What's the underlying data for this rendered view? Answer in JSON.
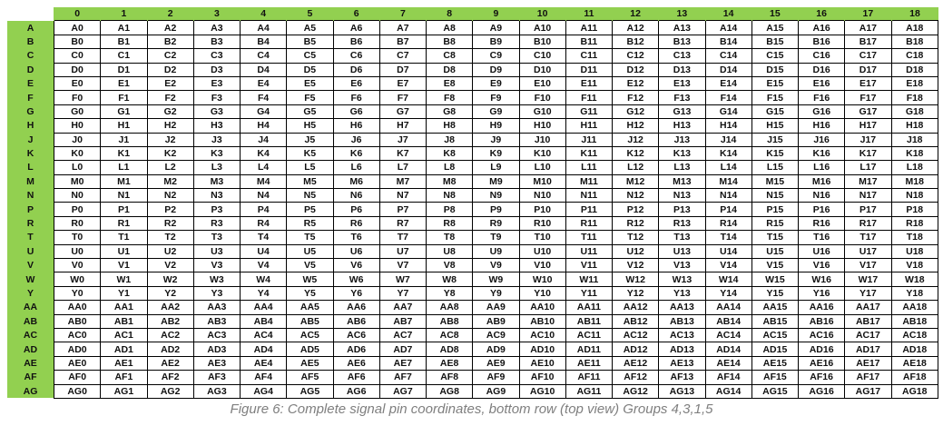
{
  "header_color": "#92d050",
  "columns": [
    "0",
    "1",
    "2",
    "3",
    "4",
    "5",
    "6",
    "7",
    "8",
    "9",
    "10",
    "11",
    "12",
    "13",
    "14",
    "15",
    "16",
    "17",
    "18"
  ],
  "rows": [
    {
      "label": "A",
      "cells": [
        "A0",
        "A1",
        "A2",
        "A3",
        "A4",
        "A5",
        "A6",
        "A7",
        "A8",
        "A9",
        "A10",
        "A11",
        "A12",
        "A13",
        "A14",
        "A15",
        "A16",
        "A17",
        "A18"
      ]
    },
    {
      "label": "B",
      "cells": [
        "B0",
        "B1",
        "B2",
        "B3",
        "B4",
        "B5",
        "B6",
        "B7",
        "B8",
        "B9",
        "B10",
        "B11",
        "B12",
        "B13",
        "B14",
        "B15",
        "B16",
        "B17",
        "B18"
      ]
    },
    {
      "label": "C",
      "cells": [
        "C0",
        "C1",
        "C2",
        "C3",
        "C4",
        "C5",
        "C6",
        "C7",
        "C8",
        "C9",
        "C10",
        "C11",
        "C12",
        "C13",
        "C14",
        "C15",
        "C16",
        "C17",
        "C18"
      ]
    },
    {
      "label": "D",
      "cells": [
        "D0",
        "D1",
        "D2",
        "D3",
        "D4",
        "D5",
        "D6",
        "D7",
        "D8",
        "D9",
        "D10",
        "D11",
        "D12",
        "D13",
        "D14",
        "D15",
        "D16",
        "D17",
        "D18"
      ]
    },
    {
      "label": "E",
      "cells": [
        "E0",
        "E1",
        "E2",
        "E3",
        "E4",
        "E5",
        "E6",
        "E7",
        "E8",
        "E9",
        "E10",
        "E11",
        "E12",
        "E13",
        "E14",
        "E15",
        "E16",
        "E17",
        "E18"
      ]
    },
    {
      "label": "F",
      "cells": [
        "F0",
        "F1",
        "F2",
        "F3",
        "F4",
        "F5",
        "F6",
        "F7",
        "F8",
        "F9",
        "F10",
        "F11",
        "F12",
        "F13",
        "F14",
        "F15",
        "F16",
        "F17",
        "F18"
      ]
    },
    {
      "label": "G",
      "cells": [
        "G0",
        "G1",
        "G2",
        "G3",
        "G4",
        "G5",
        "G6",
        "G7",
        "G8",
        "G9",
        "G10",
        "G11",
        "G12",
        "G13",
        "G14",
        "G15",
        "G16",
        "G17",
        "G18"
      ]
    },
    {
      "label": "H",
      "cells": [
        "H0",
        "H1",
        "H2",
        "H3",
        "H4",
        "H5",
        "H6",
        "H7",
        "H8",
        "H9",
        "H10",
        "H11",
        "H12",
        "H13",
        "H14",
        "H15",
        "H16",
        "H17",
        "H18"
      ]
    },
    {
      "label": "J",
      "cells": [
        "J0",
        "J1",
        "J2",
        "J3",
        "J4",
        "J5",
        "J6",
        "J7",
        "J8",
        "J9",
        "J10",
        "J11",
        "J12",
        "J13",
        "J14",
        "J15",
        "J16",
        "J17",
        "J18"
      ]
    },
    {
      "label": "K",
      "cells": [
        "K0",
        "K1",
        "K2",
        "K3",
        "K4",
        "K5",
        "K6",
        "K7",
        "K8",
        "K9",
        "K10",
        "K11",
        "K12",
        "K13",
        "K14",
        "K15",
        "K16",
        "K17",
        "K18"
      ]
    },
    {
      "label": "L",
      "cells": [
        "L0",
        "L1",
        "L2",
        "L3",
        "L4",
        "L5",
        "L6",
        "L7",
        "L8",
        "L9",
        "L10",
        "L11",
        "L12",
        "L13",
        "L14",
        "L15",
        "L16",
        "L17",
        "L18"
      ]
    },
    {
      "label": "M",
      "cells": [
        "M0",
        "M1",
        "M2",
        "M3",
        "M4",
        "M5",
        "M6",
        "M7",
        "M8",
        "M9",
        "M10",
        "M11",
        "M12",
        "M13",
        "M14",
        "M15",
        "M16",
        "M17",
        "M18"
      ]
    },
    {
      "label": "N",
      "cells": [
        "N0",
        "N1",
        "N2",
        "N3",
        "N4",
        "N5",
        "N6",
        "N7",
        "N8",
        "N9",
        "N10",
        "N11",
        "N12",
        "N13",
        "N14",
        "N15",
        "N16",
        "N17",
        "N18"
      ]
    },
    {
      "label": "P",
      "cells": [
        "P0",
        "P1",
        "P2",
        "P3",
        "P4",
        "P5",
        "P6",
        "P7",
        "P8",
        "P9",
        "P10",
        "P11",
        "P12",
        "P13",
        "P14",
        "P15",
        "P16",
        "P17",
        "P18"
      ]
    },
    {
      "label": "R",
      "cells": [
        "R0",
        "R1",
        "R2",
        "R3",
        "R4",
        "R5",
        "R6",
        "R7",
        "R8",
        "R9",
        "R10",
        "R11",
        "R12",
        "R13",
        "R14",
        "R15",
        "R16",
        "R17",
        "R18"
      ]
    },
    {
      "label": "T",
      "cells": [
        "T0",
        "T1",
        "T2",
        "T3",
        "T4",
        "T5",
        "T6",
        "T7",
        "T8",
        "T9",
        "T10",
        "T11",
        "T12",
        "T13",
        "T14",
        "T15",
        "T16",
        "T17",
        "T18"
      ]
    },
    {
      "label": "U",
      "cells": [
        "U0",
        "U1",
        "U2",
        "U3",
        "U4",
        "U5",
        "U6",
        "U7",
        "U8",
        "U9",
        "U10",
        "U11",
        "U12",
        "U13",
        "U14",
        "U15",
        "U16",
        "U17",
        "U18"
      ]
    },
    {
      "label": "V",
      "cells": [
        "V0",
        "V1",
        "V2",
        "V3",
        "V4",
        "V5",
        "V6",
        "V7",
        "V8",
        "V9",
        "V10",
        "V11",
        "V12",
        "V13",
        "V14",
        "V15",
        "V16",
        "V17",
        "V18"
      ]
    },
    {
      "label": "W",
      "cells": [
        "W0",
        "W1",
        "W2",
        "W3",
        "W4",
        "W5",
        "W6",
        "W7",
        "W8",
        "W9",
        "W10",
        "W11",
        "W12",
        "W13",
        "W14",
        "W15",
        "W16",
        "W17",
        "W18"
      ]
    },
    {
      "label": "Y",
      "cells": [
        "Y0",
        "Y1",
        "Y2",
        "Y3",
        "Y4",
        "Y5",
        "Y6",
        "Y7",
        "Y8",
        "Y9",
        "Y10",
        "Y11",
        "Y12",
        "Y13",
        "Y14",
        "Y15",
        "Y16",
        "Y17",
        "Y18"
      ]
    },
    {
      "label": "AA",
      "cells": [
        "AA0",
        "AA1",
        "AA2",
        "AA3",
        "AA4",
        "AA5",
        "AA6",
        "AA7",
        "AA8",
        "AA9",
        "AA10",
        "AA11",
        "AA12",
        "AA13",
        "AA14",
        "AA15",
        "AA16",
        "AA17",
        "AA18"
      ]
    },
    {
      "label": "AB",
      "cells": [
        "AB0",
        "AB1",
        "AB2",
        "AB3",
        "AB4",
        "AB5",
        "AB6",
        "AB7",
        "AB8",
        "AB9",
        "AB10",
        "AB11",
        "AB12",
        "AB13",
        "AB14",
        "AB15",
        "AB16",
        "AB17",
        "AB18"
      ]
    },
    {
      "label": "AC",
      "cells": [
        "AC0",
        "AC1",
        "AC2",
        "AC3",
        "AC4",
        "AC5",
        "AC6",
        "AC7",
        "AC8",
        "AC9",
        "AC10",
        "AC11",
        "AC12",
        "AC13",
        "AC14",
        "AC15",
        "AC16",
        "AC17",
        "AC18"
      ]
    },
    {
      "label": "AD",
      "cells": [
        "AD0",
        "AD1",
        "AD2",
        "AD3",
        "AD4",
        "AD5",
        "AD6",
        "AD7",
        "AD8",
        "AD9",
        "AD10",
        "AD11",
        "AD12",
        "AD13",
        "AD14",
        "AD15",
        "AD16",
        "AD17",
        "AD18"
      ]
    },
    {
      "label": "AE",
      "cells": [
        "AE0",
        "AE1",
        "AE2",
        "AE3",
        "AE4",
        "AE5",
        "AE6",
        "AE7",
        "AE8",
        "AE9",
        "AE10",
        "AE11",
        "AE12",
        "AE13",
        "AE14",
        "AE15",
        "AE16",
        "AE17",
        "AE18"
      ]
    },
    {
      "label": "AF",
      "cells": [
        "AF0",
        "AF1",
        "AF2",
        "AF3",
        "AF4",
        "AF5",
        "AF6",
        "AF7",
        "AF8",
        "AF9",
        "AF10",
        "AF11",
        "AF12",
        "AF13",
        "AF14",
        "AF15",
        "AF16",
        "AF17",
        "AF18"
      ]
    },
    {
      "label": "AG",
      "cells": [
        "AG0",
        "AG1",
        "AG2",
        "AG3",
        "AG4",
        "AG5",
        "AG6",
        "AG7",
        "AG8",
        "AG9",
        "AG10",
        "AG11",
        "AG12",
        "AG13",
        "AG14",
        "AG15",
        "AG16",
        "AG17",
        "AG18"
      ]
    }
  ],
  "caption": "Figure 6: Complete signal pin coordinates, bottom row (top view) Groups 4,3,1,5"
}
